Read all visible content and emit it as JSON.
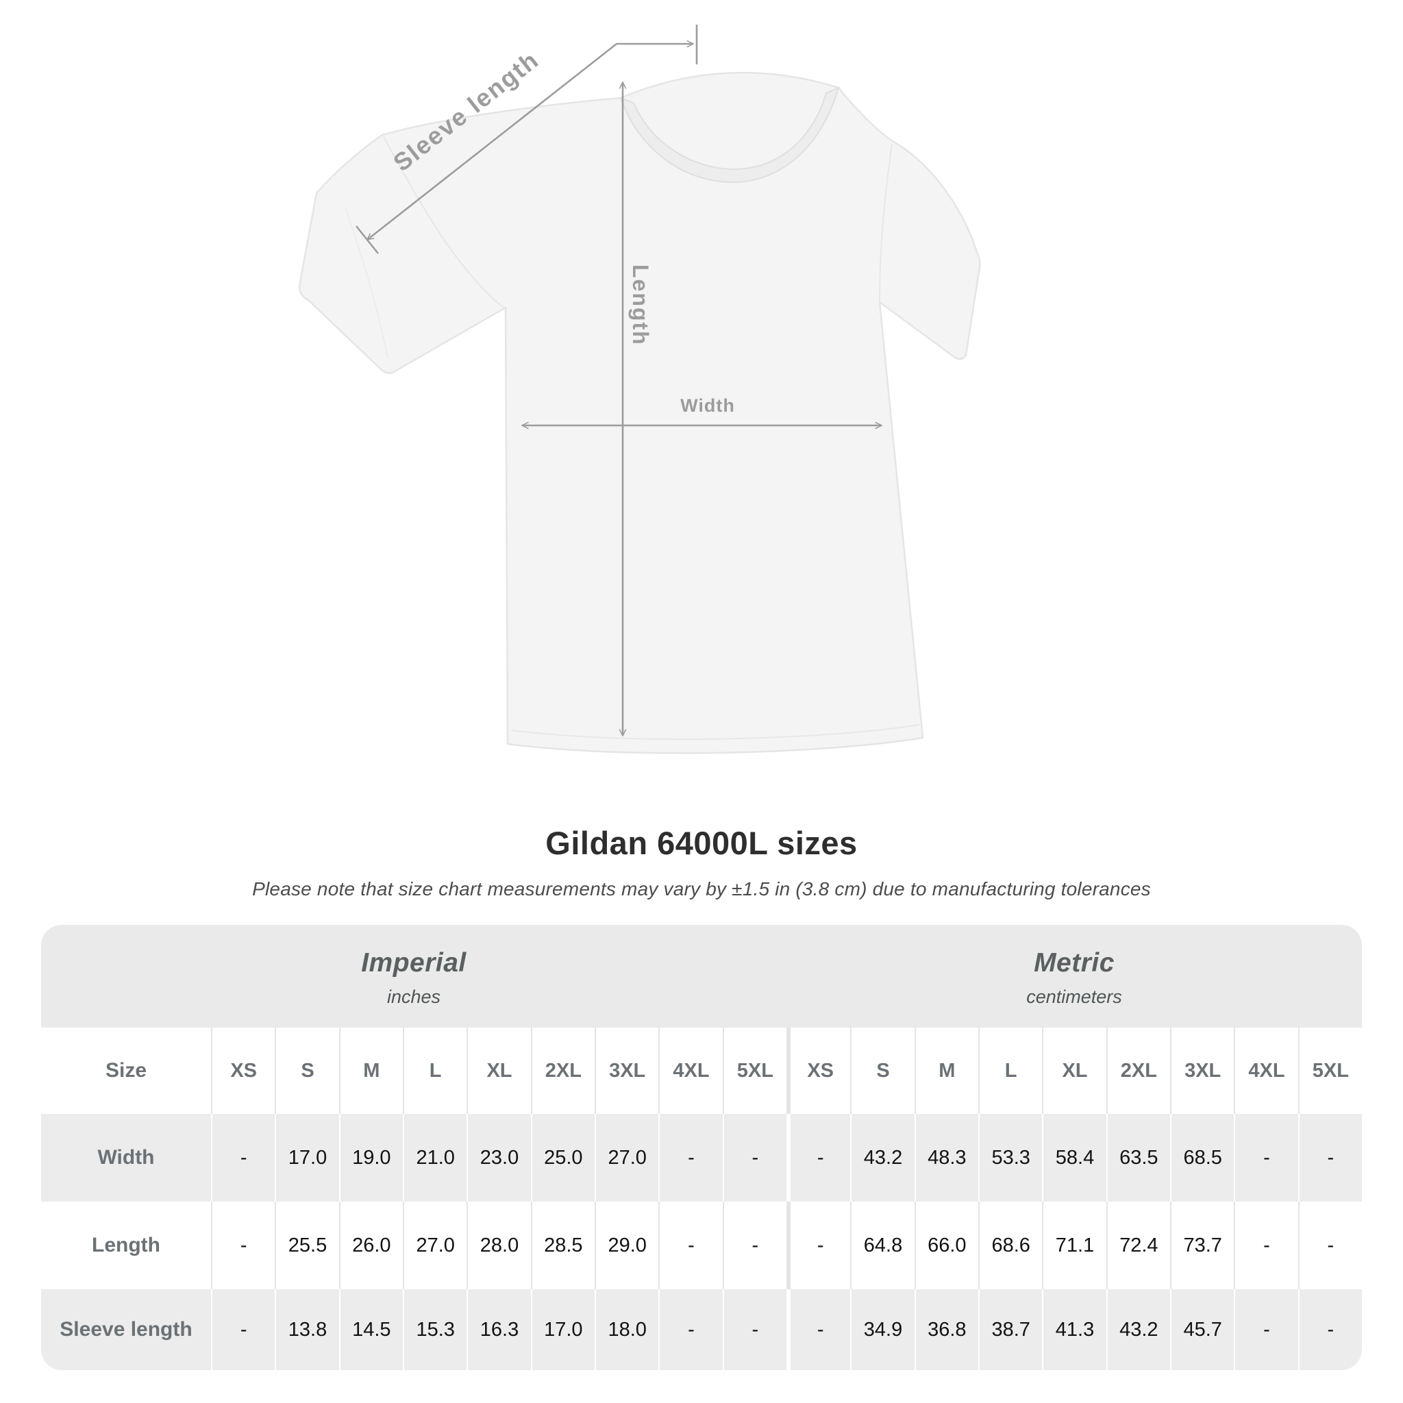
{
  "diagram": {
    "labels": {
      "sleeve_length": "Sleeve length",
      "length": "Length",
      "width": "Width"
    },
    "colors": {
      "measure_line": "#9c9c9c",
      "measure_label": "#9c9c9c",
      "shirt_fill": "#f4f4f4",
      "shirt_outline": "#e5e5e5",
      "collar_fill": "#ededed"
    }
  },
  "title": "Gildan 64000L sizes",
  "subtitle": "Please note that size chart measurements may vary by ±1.5 in (3.8 cm) due to manufacturing tolerances",
  "table": {
    "unit_groups": [
      {
        "label": "Imperial",
        "sublabel": "inches"
      },
      {
        "label": "Metric",
        "sublabel": "centimeters"
      }
    ],
    "size_header": "Size",
    "sizes": [
      "XS",
      "S",
      "M",
      "L",
      "XL",
      "2XL",
      "3XL",
      "4XL",
      "5XL"
    ],
    "rows": [
      {
        "label": "Width",
        "imperial": [
          "-",
          "17.0",
          "19.0",
          "21.0",
          "23.0",
          "25.0",
          "27.0",
          "-",
          "-"
        ],
        "metric": [
          "-",
          "43.2",
          "48.3",
          "53.3",
          "58.4",
          "63.5",
          "68.5",
          "-",
          "-"
        ]
      },
      {
        "label": "Length",
        "imperial": [
          "-",
          "25.5",
          "26.0",
          "27.0",
          "28.0",
          "28.5",
          "29.0",
          "-",
          "-"
        ],
        "metric": [
          "-",
          "64.8",
          "66.0",
          "68.6",
          "71.1",
          "72.4",
          "73.7",
          "-",
          "-"
        ]
      },
      {
        "label": "Sleeve length",
        "imperial": [
          "-",
          "13.8",
          "14.5",
          "15.3",
          "16.3",
          "17.0",
          "18.0",
          "-",
          "-"
        ],
        "metric": [
          "-",
          "34.9",
          "36.8",
          "38.7",
          "41.3",
          "43.2",
          "45.7",
          "-",
          "-"
        ]
      }
    ],
    "colors": {
      "band_bg": "#eaeaea",
      "row_alt_bg": "#ececec",
      "header_text": "#6b7174",
      "value_text": "#121212"
    }
  }
}
